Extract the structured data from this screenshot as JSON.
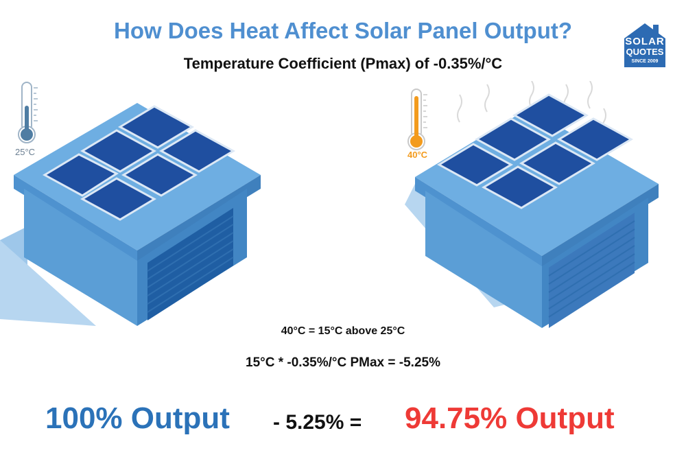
{
  "title": "How Does Heat Affect Solar Panel Output?",
  "subtitle": "Temperature Coefficient (Pmax) of -0.35%/°C",
  "logo": {
    "line1": "SOLAR",
    "line2": "QUOTES",
    "line3": "SINCE 2009"
  },
  "left_scene": {
    "temperature": "25°C"
  },
  "right_scene": {
    "temperature": "40°C"
  },
  "calculation": {
    "line1": "40°C = 15°C above 25°C",
    "line2": "15°C * -0.35%/°C PMax =  -5.25%"
  },
  "result": {
    "base": "100% Output",
    "operator": "- 5.25% =",
    "final": "94.75% Output"
  },
  "colors": {
    "title_blue": "#4f8fd0",
    "output_blue": "#2b72b8",
    "output_red": "#ee3a36",
    "hot_orange": "#f39b1d",
    "building_blue": "#5b9ed6"
  }
}
